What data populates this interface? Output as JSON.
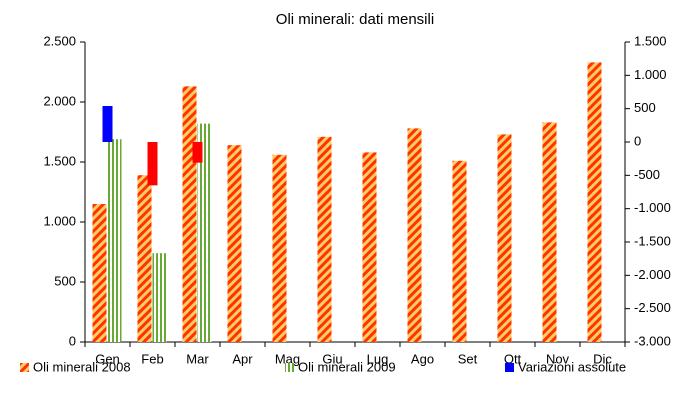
{
  "chart_data": {
    "type": "bar",
    "title": "Oli minerali: dati mensili",
    "categories": [
      "Gen",
      "Feb",
      "Mar",
      "Apr",
      "Mag",
      "Giu",
      "Lug",
      "Ago",
      "Set",
      "Ott",
      "Nov",
      "Dic"
    ],
    "series": [
      {
        "name": "Oli minerali 2008",
        "color": "#ff3300",
        "pattern": "diagonal",
        "axis": "y",
        "values": [
          1150,
          1390,
          2130,
          1640,
          1560,
          1710,
          1580,
          1780,
          1510,
          1730,
          1830,
          2330
        ]
      },
      {
        "name": "Oli minerali 2009",
        "color": "#66aa33",
        "pattern": "vertical",
        "axis": "y",
        "values": [
          1690,
          740,
          1820,
          null,
          null,
          null,
          null,
          null,
          null,
          null,
          null,
          null
        ]
      },
      {
        "name": "Variazioni assolute",
        "color": "#0000ff",
        "negative_color": "#ff0000",
        "axis": "y2",
        "values": [
          540,
          -650,
          -310,
          null,
          null,
          null,
          null,
          null,
          null,
          null,
          null,
          null
        ]
      }
    ],
    "ylim": [
      0,
      2500
    ],
    "yticks": [
      0,
      500,
      {
        "value": 1000,
        "label": "1.000"
      },
      {
        "value": 1500,
        "label": "1.500"
      },
      {
        "value": 2000,
        "label": "2.000"
      },
      {
        "value": 2500,
        "label": "2.500"
      }
    ],
    "y2lim": [
      -3000,
      1500
    ],
    "y2ticks": [
      {
        "value": -3000,
        "label": "-3.000"
      },
      {
        "value": -2500,
        "label": "-2.500"
      },
      {
        "value": -2000,
        "label": "-2.000"
      },
      {
        "value": -1500,
        "label": "-1.500"
      },
      {
        "value": -1000,
        "label": "-1.000"
      },
      -500,
      0,
      500,
      {
        "value": 1000,
        "label": "1.000"
      },
      {
        "value": 1500,
        "label": "1.500"
      }
    ],
    "grid": false,
    "legend": "bottom"
  }
}
